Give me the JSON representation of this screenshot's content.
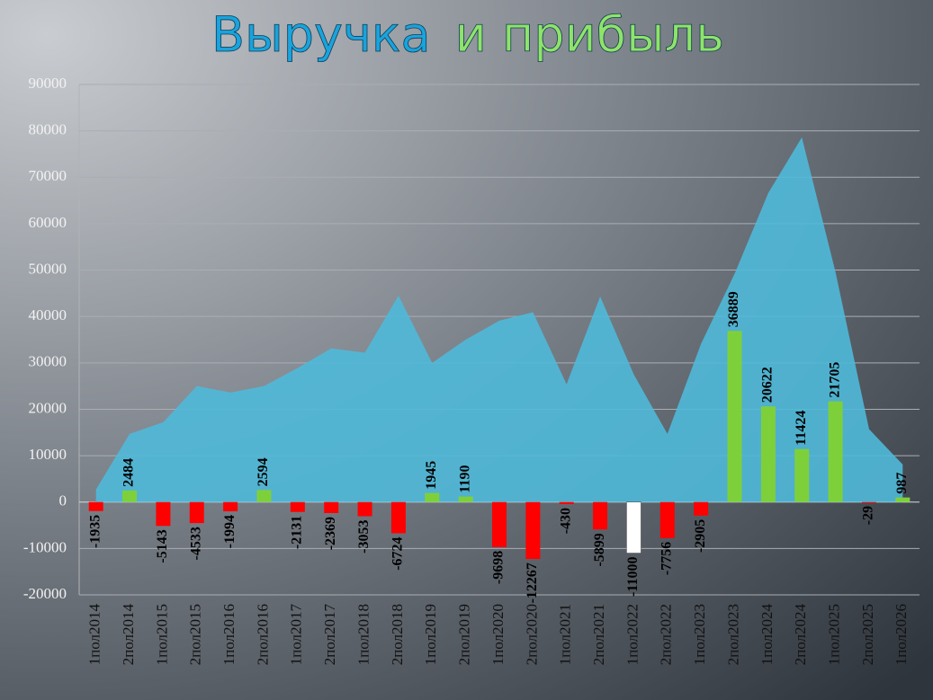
{
  "chart_data": {
    "type": "combo",
    "title": [
      "Выручка",
      "и прибыль"
    ],
    "title_colors": [
      "#1aa3dd",
      "#8fe36a"
    ],
    "categories": [
      "1пол2014",
      "2пол2014",
      "1пол2015",
      "2пол2015",
      "1пол2016",
      "2пол2016",
      "1пол2017",
      "2пол2017",
      "1пол2018",
      "2пол2018",
      "1пол2019",
      "2пол2019",
      "1пол2020",
      "2пол2020",
      "1пол2021",
      "2пол2021",
      "1пол2022",
      "2пол2022",
      "1пол2023",
      "2пол2023",
      "1пол2024",
      "2пол2024",
      "1пол2025",
      "2пол2025",
      "1пол2026"
    ],
    "series": [
      {
        "type": "area",
        "color": "#4fb9d9",
        "values": [
          2700,
          14700,
          17200,
          25000,
          23600,
          25000,
          28900,
          33100,
          32200,
          44500,
          30000,
          35000,
          39100,
          40900,
          25400,
          44300,
          27500,
          14700,
          34100,
          49200,
          66600,
          78600,
          49600,
          15700,
          8100
        ]
      },
      {
        "type": "bar",
        "colors": [
          "#ff0000",
          "#7ed03a",
          "#ff0000",
          "#ff0000",
          "#ff0000",
          "#7ed03a",
          "#ff0000",
          "#ff0000",
          "#ff0000",
          "#ff0000",
          "#7ed03a",
          "#7ed03a",
          "#ff0000",
          "#ff0000",
          "#ff0000",
          "#ff0000",
          "#ffffff",
          "#ff0000",
          "#ff0000",
          "#7ed03a",
          "#7ed03a",
          "#7ed03a",
          "#7ed03a",
          "#ff0000",
          "#7ed03a"
        ],
        "values": [
          -1935,
          2484,
          -5143,
          -4533,
          -1994,
          2594,
          -2131,
          -2369,
          -3053,
          -6724,
          1945,
          1190,
          -9698,
          -12267,
          -430,
          -5899,
          -11000,
          -7756,
          -2905,
          36889,
          20622,
          11424,
          21705,
          -29,
          987
        ]
      }
    ],
    "ylim": [
      -20000,
      90000
    ],
    "yticks": [
      -20000,
      -10000,
      0,
      10000,
      20000,
      30000,
      40000,
      50000,
      60000,
      70000,
      80000,
      90000
    ],
    "grid": true
  }
}
